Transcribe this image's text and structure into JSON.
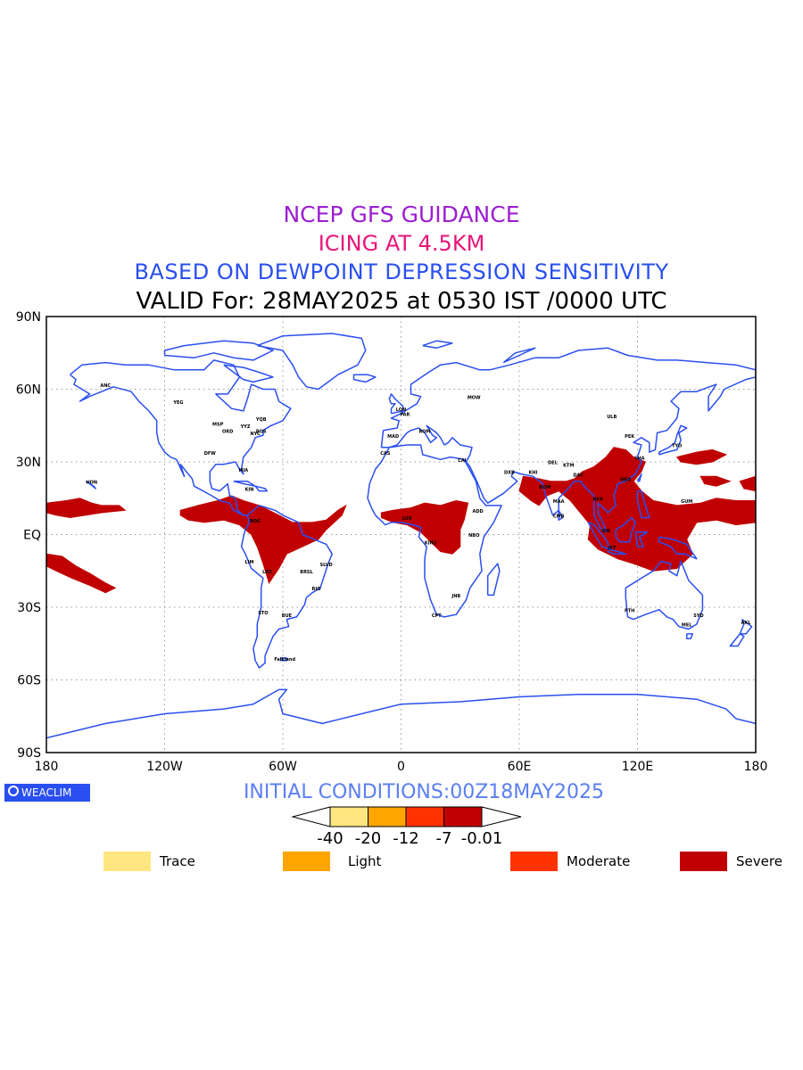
{
  "titles": {
    "line1": "NCEP GFS GUIDANCE",
    "line2": "ICING AT 4.5KM",
    "line3": "BASED ON DEWPOINT DEPRESSION SENSITIVITY",
    "line4": "VALID For: 28MAY2025 at 0530 IST /0000 UTC"
  },
  "map": {
    "lat_labels": [
      "90N",
      "60N",
      "30N",
      "EQ",
      "30S",
      "60S",
      "90S"
    ],
    "lon_labels": [
      "180",
      "120W",
      "60W",
      "0",
      "60E",
      "120E",
      "180"
    ],
    "lat_range": [
      -90,
      90
    ],
    "lon_range": [
      -180,
      180
    ],
    "grid": true,
    "coastline_color": "#2a4ff0",
    "icing_color": "#c00000",
    "grid_color": "#999999",
    "station_labels": [
      "ANC",
      "YEG",
      "YQB",
      "MSP",
      "YYZ",
      "BOS",
      "NYC",
      "ORD",
      "DFW",
      "MIA",
      "HON",
      "KIN",
      "LIM",
      "BOG",
      "LPZ",
      "BRSL",
      "SLVD",
      "RIO",
      "STO",
      "BUE",
      "Falkland",
      "LON",
      "PAR",
      "ROM",
      "MOW",
      "MAD",
      "CAS",
      "CAI",
      "DXB",
      "KHI",
      "DEL",
      "BOM",
      "MAA",
      "CMB",
      "DAC",
      "KTM",
      "BKK",
      "SIN",
      "JKT",
      "HKG",
      "SHA",
      "PEK",
      "TYO",
      "ULB",
      "GUM",
      "NBO",
      "ADD",
      "LOS",
      "KIN2",
      "JNB",
      "CPT",
      "PTH",
      "SYD",
      "MEL",
      "AKL"
    ]
  },
  "logo": {
    "text": "WEACLIM"
  },
  "initial_conditions": "INITIAL CONDITIONS:00Z18MAY2025",
  "colorbar": {
    "tick_labels": [
      "-40",
      "-20",
      "-12",
      "-7",
      "-0.01"
    ],
    "colors": [
      "#ffe680",
      "#ffa500",
      "#ff3300",
      "#c00000"
    ]
  },
  "legend": [
    {
      "label": "Trace",
      "color": "#ffe680"
    },
    {
      "label": "Light",
      "color": "#ffa500"
    },
    {
      "label": "Moderate",
      "color": "#ff3300"
    },
    {
      "label": "Severe",
      "color": "#c00000"
    }
  ]
}
